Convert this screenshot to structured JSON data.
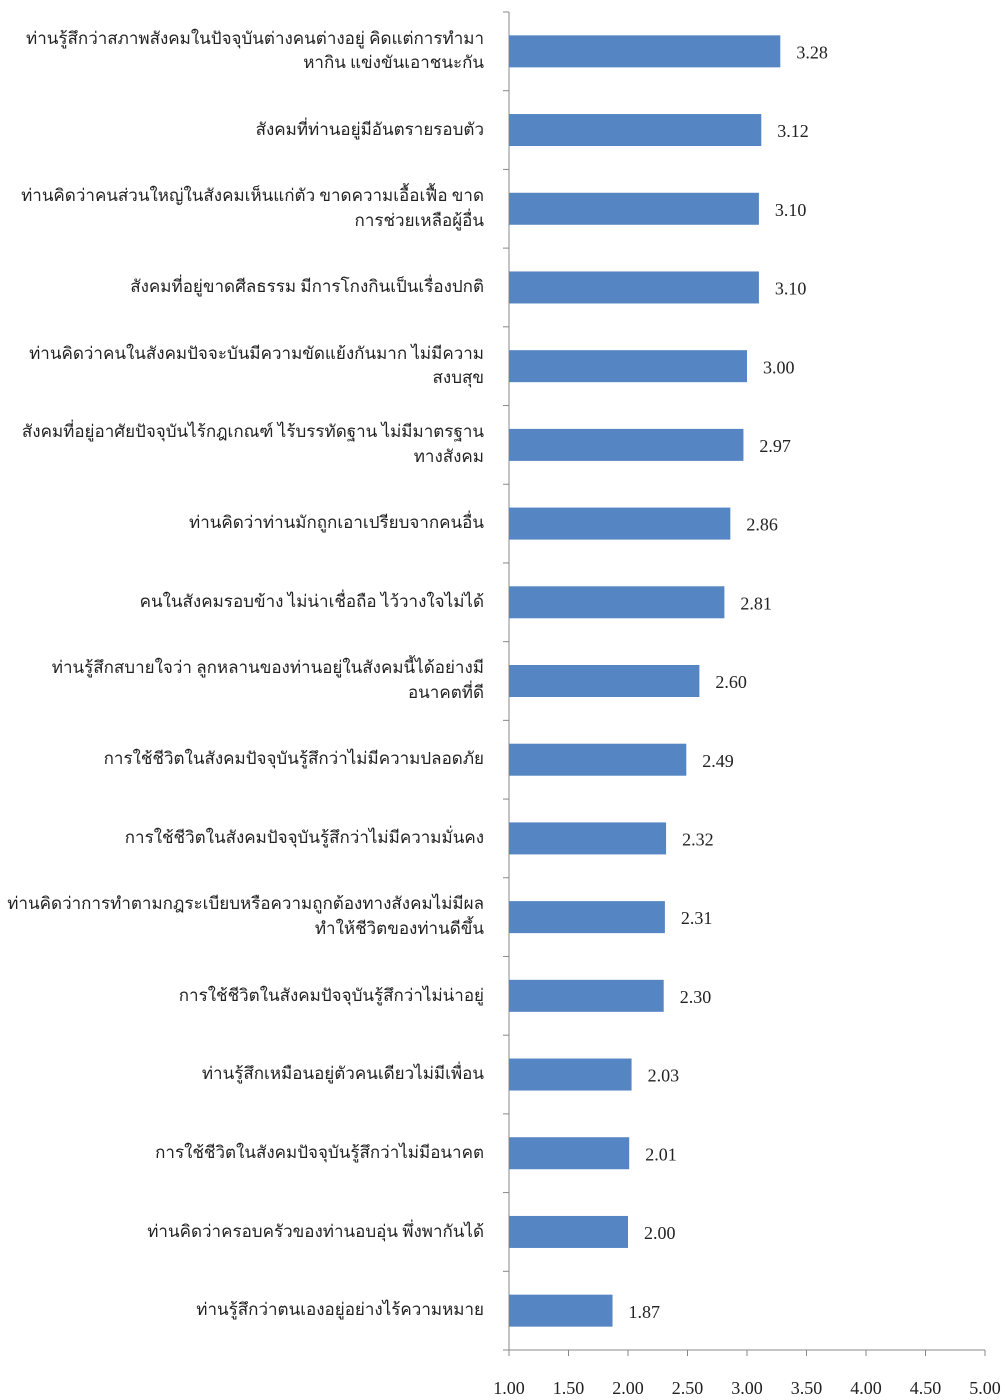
{
  "chart_data": {
    "type": "bar",
    "orientation": "horizontal",
    "categories": [
      "ท่านรู้สึกว่าสภาพสังคมในปัจจุบันต่างคนต่างอยู่ คิดแต่การทำมาหากิน แข่งขันเอาชนะกัน",
      "สังคมที่ท่านอยู่มีอันตรายรอบตัว",
      "ท่านคิดว่าคนส่วนใหญ่ในสังคมเห็นแก่ตัว ขาดความเอื้อเฟื้อ ขาดการช่วยเหลือผู้อื่น",
      "สังคมที่อยู่ขาดศีลธรรม มีการโกงกินเป็นเรื่องปกติ",
      "ท่านคิดว่าคนในสังคมปัจจะบันมีความขัดแย้งกันมาก ไม่มีความสงบสุข",
      "สังคมที่อยู่อาศัยปัจจุบันไร้กฎเกณฑ์ ไร้บรรทัดฐาน ไม่มีมาตรฐานทางสังคม",
      "ท่านคิดว่าท่านมักถูกเอาเปรียบจากคนอื่น",
      "คนในสังคมรอบข้าง ไม่น่าเชื่อถือ ไว้วางใจไม่ได้",
      "ท่านรู้สึกสบายใจว่า ลูกหลานของท่านอยู่ในสังคมนี้ได้อย่างมีอนาคตที่ดี",
      "การใช้ชีวิตในสังคมปัจจุบันรู้สึกว่าไม่มีความปลอดภัย",
      "การใช้ชีวิตในสังคมปัจจุบันรู้สึกว่าไม่มีความมั่นคง",
      "ท่านคิดว่าการทำตามกฎระเบียบหรือความถูกต้องทางสังคมไม่มีผลทำให้ชีวิตของท่านดีขึ้น",
      "การใช้ชีวิตในสังคมปัจจุบันรู้สึกว่าไม่น่าอยู่",
      "ท่านรู้สึกเหมือนอยู่ตัวคนเดียวไม่มีเพื่อน",
      "การใช้ชีวิตในสังคมปัจจุบันรู้สึกว่าไม่มีอนาคต",
      "ท่านคิดว่าครอบครัวของท่านอบอุ่น พึ่งพากันได้",
      "ท่านรู้สึกว่าตนเองอยู่อย่างไร้ความหมาย"
    ],
    "values": [
      3.28,
      3.12,
      3.1,
      3.1,
      3.0,
      2.97,
      2.86,
      2.81,
      2.6,
      2.49,
      2.32,
      2.31,
      2.3,
      2.03,
      2.01,
      2.0,
      1.87
    ],
    "value_labels": [
      "3.28",
      "3.12",
      "3.10",
      "3.10",
      "3.00",
      "2.97",
      "2.86",
      "2.81",
      "2.60",
      "2.49",
      "2.32",
      "2.31",
      "2.30",
      "2.03",
      "2.01",
      "2.00",
      "1.87"
    ],
    "color": "#5585c2",
    "xlim": [
      1,
      5
    ],
    "xticks": [
      {
        "value": 1,
        "label": "1.00"
      },
      {
        "value": 1.5,
        "label": "1.50"
      },
      {
        "value": 2,
        "label": "2.00"
      },
      {
        "value": 2.5,
        "label": "2.50"
      },
      {
        "value": 3,
        "label": "3.00"
      },
      {
        "value": 3.5,
        "label": "3.50"
      },
      {
        "value": 4,
        "label": "4.00"
      },
      {
        "value": 4.5,
        "label": "4.50"
      },
      {
        "value": 5,
        "label": "5.00"
      }
    ]
  }
}
